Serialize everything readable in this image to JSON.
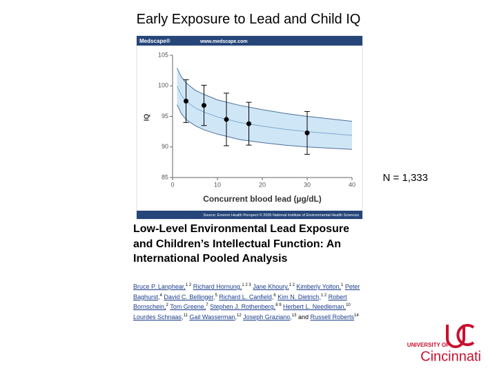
{
  "title": "Early Exposure to Lead and Child IQ",
  "annotation": "N = 1,333",
  "chart_data": {
    "type": "scatter",
    "header": {
      "brand": "Medscape®",
      "url": "www.medscape.com"
    },
    "source": "Source: Environ Health Perspect © 2005 National Institute of Environmental Health Sciences",
    "xlabel": "Concurrent blood lead (µg/dL)",
    "ylabel": "IQ",
    "x": [
      3,
      7,
      12,
      17,
      30
    ],
    "values": [
      97.5,
      96.8,
      94.5,
      93.8,
      92.3
    ],
    "errors": [
      3.5,
      3.3,
      4.3,
      3.5,
      3.5
    ],
    "fit": {
      "x": [
        1,
        2,
        3,
        5,
        7,
        10,
        15,
        20,
        25,
        30,
        35,
        40
      ],
      "center": [
        99.9,
        98.4,
        97.5,
        96.4,
        95.7,
        94.9,
        94.0,
        93.4,
        92.9,
        92.5,
        92.2,
        91.9
      ],
      "upper": [
        102.9,
        101.4,
        100.5,
        99.3,
        98.6,
        97.7,
        96.8,
        96.1,
        95.5,
        95.0,
        94.6,
        94.2
      ],
      "lower": [
        96.9,
        95.4,
        94.5,
        93.5,
        92.8,
        92.1,
        91.2,
        90.7,
        90.3,
        90.0,
        89.8,
        89.6
      ]
    },
    "color": "#000000",
    "band_color": "#cfe6f7",
    "xlim": [
      0,
      40
    ],
    "ylim": [
      85,
      105
    ],
    "xticks": [
      0,
      10,
      20,
      30,
      40
    ],
    "yticks": [
      85,
      90,
      95,
      100,
      105
    ],
    "grid": false
  },
  "paper": {
    "title": "Low-Level Environmental Lead Exposure and Children’s Intellectual Function: An International Pooled Analysis",
    "authors": [
      {
        "name": "Bruce P. Lanphear,",
        "aff": "1 2"
      },
      {
        "name": "Richard Hornung,",
        "aff": "1 2 3"
      },
      {
        "name": "Jane Khoury,",
        "aff": "1 2"
      },
      {
        "name": "Kimberly Yolton,",
        "aff": "1"
      },
      {
        "name": "Peter Baghurst,",
        "aff": "4"
      },
      {
        "name": "David C. Bellinger,",
        "aff": "5"
      },
      {
        "name": "Richard L. Canfield,",
        "aff": "6"
      },
      {
        "name": "Kim N. Dietrich,",
        "aff": "1 2"
      },
      {
        "name": "Robert Bornschein,",
        "aff": "2"
      },
      {
        "name": "Tom Greene,",
        "aff": "7"
      },
      {
        "name": "Stephen J. Rothenberg,",
        "aff": "8 9"
      },
      {
        "name": "Herbert L. Needleman,",
        "aff": "10"
      },
      {
        "name": "Lourdes Schnaas,",
        "aff": "11"
      },
      {
        "name": "Gail Wasserman,",
        "aff": "12"
      },
      {
        "name": "Joseph Graziano,",
        "aff": "13"
      },
      {
        "name": "Russell Roberts",
        "aff": "14"
      }
    ],
    "conjunction": "and"
  },
  "logo": {
    "line1": "UNIVERSITY OF",
    "line2": "Cincinnati"
  }
}
